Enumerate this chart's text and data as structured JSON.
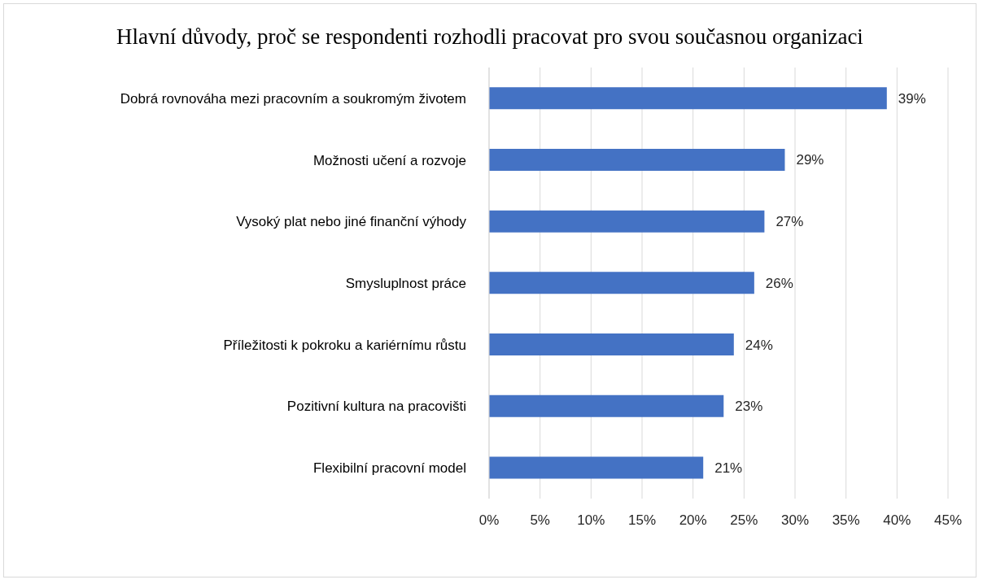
{
  "chart_data": {
    "type": "bar",
    "orientation": "horizontal",
    "title": "Hlavní důvody, proč se respondenti rozhodli pracovat pro svou současnou organizaci",
    "categories": [
      "Dobrá rovnováha mezi pracovním a soukromým životem",
      "Možnosti učení a rozvoje",
      "Vysoký plat nebo jiné finanční výhody",
      "Smysluplnost práce",
      "Příležitosti k pokroku a kariérnímu růstu",
      "Pozitivní kultura na pracovišti",
      "Flexibilní pracovní model"
    ],
    "values": [
      39,
      29,
      27,
      26,
      24,
      23,
      21
    ],
    "value_labels": [
      "39%",
      "29%",
      "27%",
      "26%",
      "24%",
      "23%",
      "21%"
    ],
    "color": "#4472c4",
    "xlim": [
      0,
      45
    ],
    "xticks": [
      {
        "value": 0,
        "label": "0%"
      },
      {
        "value": 5,
        "label": "5%"
      },
      {
        "value": 10,
        "label": "10%"
      },
      {
        "value": 15,
        "label": "15%"
      },
      {
        "value": 20,
        "label": "20%"
      },
      {
        "value": 25,
        "label": "25%"
      },
      {
        "value": 30,
        "label": "30%"
      },
      {
        "value": 35,
        "label": "35%"
      },
      {
        "value": 40,
        "label": "40%"
      },
      {
        "value": 45,
        "label": "45%"
      }
    ],
    "grid": "x",
    "legend": false
  }
}
